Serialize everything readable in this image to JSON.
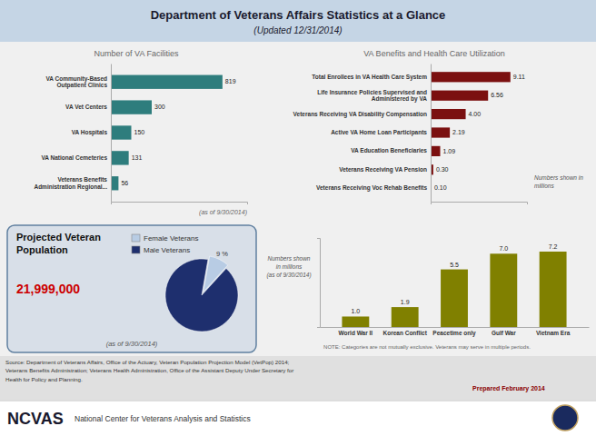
{
  "title": "Department of Veterans Affairs Statistics at a Glance",
  "subtitle": "(Updated 12/31/2014)",
  "annotations": [
    "Source: Department of Veterans Affairs, Office of the Actuary, Veteran Population Projection Model (VetPop) 2014;\nVeterans Benefits Administration; Veterans Health Administration, Office of the Assistant Deputy Under Secretary for\nHealth for Policy and Planning.",
    "Prepared February 2014",
    "NCVAS",
    "National Center for Veterans Analysis and Statistics"
  ],
  "chart_data": [
    {
      "type": "bar",
      "orientation": "horizontal",
      "title": "Number of  VA Facilities",
      "categories": [
        "VA Community-Based\nOutpatient Clinics",
        "VA Vet Centers",
        "VA Hospitals",
        "VA National Cemeteries",
        "Veterans Benefits\nAdministration Regional..."
      ],
      "values": [
        819,
        300,
        150,
        131,
        56
      ],
      "color": "#2e7d7d",
      "xlim": [
        0,
        1000
      ],
      "data_labels": true,
      "tick_labels": "y",
      "annotations": [
        "(as of 9/30/2014)"
      ]
    },
    {
      "type": "bar",
      "orientation": "horizontal",
      "title": "VA Benefits and Health Care Utilization",
      "categories": [
        "Total Enrollees in VA Health Care System",
        "Life Insurance Policies Supervised and\nAdministered by VA",
        "Veterans Receiving VA Disability Compensation",
        "Active VA Home Loan Participants",
        "VA Education Beneficiaries",
        "Veterans Receiving VA Pension",
        "Veterans Receiving Voc Rehab Benefits"
      ],
      "values": [
        9.11,
        6.56,
        4.0,
        2.19,
        1.09,
        0.3,
        0.1
      ],
      "value_labels": [
        "9.11",
        "6.56",
        "4.00",
        "2.19",
        "1.09",
        "0.30",
        "0.10"
      ],
      "color": "#7b1010",
      "xlim": [
        0,
        11
      ],
      "tick_labels": "y",
      "annotations": [
        "Numbers shown in\nmillions"
      ]
    },
    {
      "type": "bar",
      "categories": [
        "World War II",
        "Korean Conflict",
        "Peacetime only",
        "Gulf War",
        "Vietnam Era"
      ],
      "values": [
        1.0,
        1.9,
        5.5,
        7.0,
        7.2
      ],
      "value_labels": [
        "1.0",
        "1.9",
        "5.5",
        "7.0",
        "7.2"
      ],
      "color": "#808000",
      "ylim": [
        0,
        8.5
      ],
      "tick_labels": "x",
      "annotations": [
        "Numbers shown\nin millions\n(as of 9/30/2014)",
        "NOTE: Categories are not mutually exclusive.  Veterans may serve in multiple periods."
      ]
    },
    {
      "type": "pie",
      "title": "Projected Veteran\nPopulation",
      "categories": [
        "Female Veterans",
        "Male Veterans"
      ],
      "values": [
        9,
        91
      ],
      "value_labels": [
        "9 %",
        null
      ],
      "colors": [
        "#b8cce4",
        "#1e2f6e"
      ],
      "legend": "top-right",
      "annotations": [
        "21,999,000",
        "(as of 9/30/2014)"
      ]
    }
  ]
}
